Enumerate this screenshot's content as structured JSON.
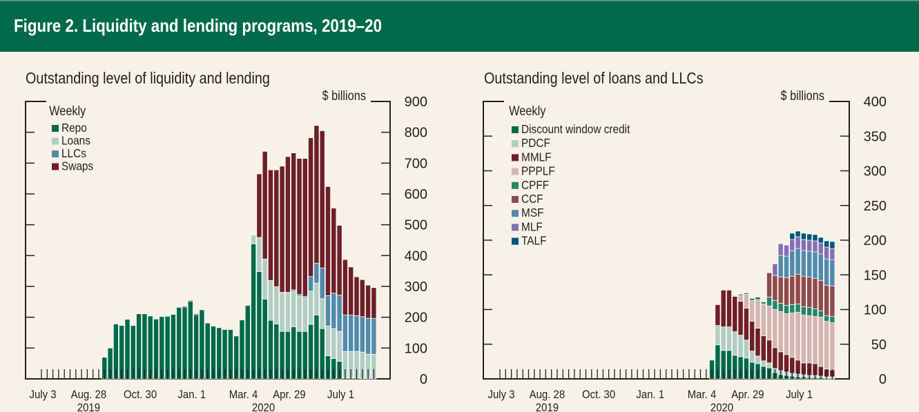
{
  "header": {
    "title": "Figure 2. Liquidity and lending programs, 2019–20"
  },
  "chart_data": [
    {
      "type": "bar",
      "stacked": true,
      "title": "Outstanding level of liquidity and lending",
      "ylabel": "$ billions",
      "frequency_label": "Weekly",
      "ylim": [
        0,
        900
      ],
      "yticks": [
        0,
        100,
        200,
        300,
        400,
        500,
        600,
        700,
        800,
        900
      ],
      "x_ticks": [
        {
          "label": "July 3",
          "week": 0
        },
        {
          "label": "Aug. 28",
          "week": 8
        },
        {
          "label": "Oct. 30",
          "week": 17
        },
        {
          "label": "Jan. 1",
          "week": 26
        },
        {
          "label": "Mar. 4",
          "week": 35
        },
        {
          "label": "Apr. 29",
          "week": 43
        },
        {
          "label": "July 1",
          "week": 52
        }
      ],
      "year_labels": [
        {
          "label": "2019",
          "week": 8
        },
        {
          "label": "2020",
          "week": 38.5
        }
      ],
      "total_weeks": 59,
      "first_bar_week": 11,
      "legend_position": "top-left",
      "series": [
        {
          "name": "Repo",
          "color": "#006a4a",
          "values": [
            70,
            100,
            178,
            173,
            193,
            173,
            211,
            211,
            204,
            194,
            202,
            203,
            209,
            232,
            233,
            252,
            208,
            224,
            181,
            171,
            166,
            160,
            160,
            139,
            191,
            238,
            438,
            348,
            259,
            190,
            178,
            154,
            154,
            169,
            154,
            154,
            177,
            207,
            163,
            75,
            66,
            57,
            3,
            3,
            3,
            2,
            2,
            2
          ]
        },
        {
          "name": "Loans",
          "color": "#b3cdc3",
          "values": [
            0,
            0,
            0,
            0,
            0,
            0,
            0,
            0,
            0,
            0,
            0,
            0,
            0,
            0,
            0,
            0,
            0,
            0,
            0,
            0,
            0,
            0,
            0,
            0,
            0,
            0,
            28,
            111,
            130,
            129,
            121,
            124,
            124,
            115,
            115,
            109,
            108,
            104,
            97,
            96,
            97,
            97,
            86,
            86,
            86,
            85,
            78,
            78
          ]
        },
        {
          "name": "LLCs",
          "color": "#528aab",
          "values": [
            0,
            0,
            0,
            0,
            0,
            0,
            0,
            0,
            0,
            0,
            0,
            0,
            0,
            0,
            0,
            0,
            0,
            0,
            0,
            0,
            0,
            0,
            0,
            0,
            0,
            0,
            0,
            0,
            0,
            0,
            0,
            3,
            3,
            5,
            5,
            5,
            47,
            64,
            100,
            99,
            115,
            118,
            118,
            118,
            116,
            115,
            117,
            116
          ]
        },
        {
          "name": "Swaps",
          "color": "#6e1f27",
          "values": [
            0,
            0,
            0,
            0,
            0,
            0,
            0,
            0,
            0,
            0,
            0,
            0,
            0,
            0,
            3,
            3,
            3,
            0,
            0,
            0,
            0,
            0,
            0,
            0,
            0,
            0,
            0,
            206,
            349,
            359,
            379,
            409,
            440,
            444,
            441,
            447,
            450,
            447,
            445,
            354,
            276,
            226,
            180,
            156,
            126,
            120,
            107,
            100
          ]
        }
      ]
    },
    {
      "type": "bar",
      "stacked": true,
      "title": "Outstanding level of loans and LLCs",
      "ylabel": "$ billions",
      "frequency_label": "Weekly",
      "ylim": [
        0,
        400
      ],
      "yticks": [
        0,
        50,
        100,
        150,
        200,
        250,
        300,
        350,
        400
      ],
      "x_ticks": [
        {
          "label": "July 3",
          "week": 0
        },
        {
          "label": "Aug. 28",
          "week": 8
        },
        {
          "label": "Oct. 30",
          "week": 17
        },
        {
          "label": "Jan. 1",
          "week": 26
        },
        {
          "label": "Mar. 4",
          "week": 35
        },
        {
          "label": "Apr. 29",
          "week": 43
        },
        {
          "label": "July 1",
          "week": 52
        }
      ],
      "year_labels": [
        {
          "label": "2019",
          "week": 8
        },
        {
          "label": "2020",
          "week": 38.5
        }
      ],
      "total_weeks": 59,
      "first_bar_week": 37,
      "legend_position": "top-left",
      "series": [
        {
          "name": "Discount window credit",
          "color": "#006a4a",
          "values": [
            27,
            49,
            41,
            41,
            34,
            32,
            30,
            24,
            22,
            18,
            16,
            9,
            6,
            5,
            4,
            3,
            3,
            2,
            2,
            2,
            1,
            1
          ]
        },
        {
          "name": "PDCF",
          "color": "#b3cdc3",
          "values": [
            0,
            28,
            34,
            34,
            34,
            31,
            26,
            16,
            11,
            8,
            7,
            6,
            6,
            5,
            4,
            4,
            3,
            3,
            3,
            2,
            2,
            2
          ]
        },
        {
          "name": "MMLF",
          "color": "#6e1f27",
          "values": [
            0,
            30,
            53,
            53,
            51,
            49,
            46,
            43,
            40,
            36,
            33,
            30,
            27,
            25,
            23,
            20,
            17,
            18,
            17,
            14,
            11,
            10
          ]
        },
        {
          "name": "PPPLF",
          "color": "#d4b5b0",
          "values": [
            0,
            0,
            0,
            0,
            0,
            8,
            20,
            30,
            41,
            46,
            49,
            55,
            58,
            59,
            64,
            69,
            69,
            68,
            68,
            71,
            69,
            68
          ]
        },
        {
          "name": "CPFF",
          "color": "#24856a",
          "values": [
            0,
            0,
            0,
            0,
            1,
            2,
            2,
            3,
            4,
            3,
            13,
            13,
            12,
            12,
            12,
            12,
            12,
            12,
            11,
            9,
            8,
            9
          ]
        },
        {
          "name": "CCF",
          "color": "#8e4b4b",
          "values": [
            0,
            0,
            0,
            0,
            0,
            0,
            0,
            0,
            0,
            0,
            35,
            36,
            38,
            40,
            41,
            43,
            44,
            44,
            44,
            44,
            44,
            44
          ]
        },
        {
          "name": "MSF",
          "color": "#528aab",
          "values": [
            0,
            0,
            0,
            0,
            0,
            0,
            0,
            0,
            0,
            0,
            0,
            0,
            31,
            31,
            37,
            37,
            37,
            37,
            38,
            38,
            38,
            38
          ]
        },
        {
          "name": "MLF",
          "color": "#8470b3",
          "values": [
            0,
            0,
            0,
            0,
            0,
            0,
            0,
            0,
            0,
            0,
            0,
            17,
            17,
            16,
            16,
            17,
            16,
            16,
            16,
            16,
            17,
            16
          ]
        },
        {
          "name": "TALF",
          "color": "#005578",
          "values": [
            0,
            0,
            0,
            0,
            0,
            0,
            0,
            0,
            0,
            0,
            0,
            0,
            0,
            0,
            9,
            8,
            9,
            9,
            9,
            8,
            9,
            10
          ]
        }
      ]
    }
  ]
}
